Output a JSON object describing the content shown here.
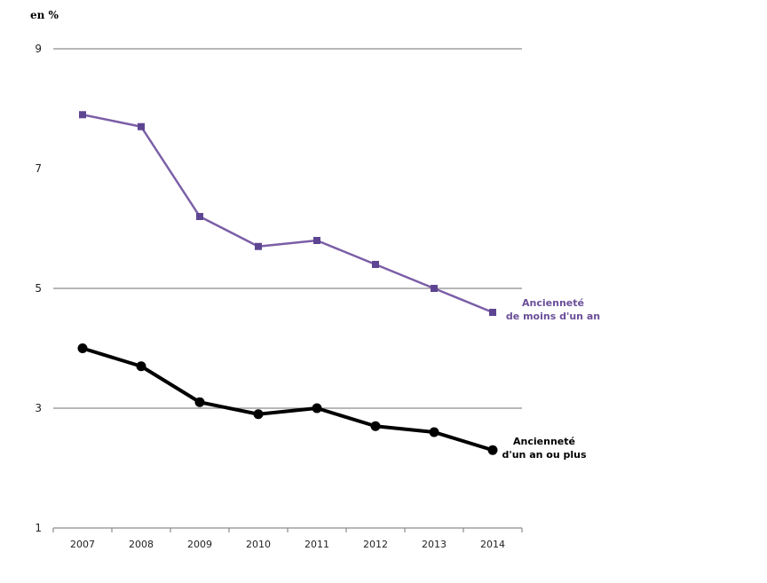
{
  "chart_data": {
    "type": "line",
    "title": "",
    "unit_label": "en %",
    "xlabel": "",
    "ylabel": "en %",
    "categories": [
      "2007",
      "2008",
      "2009",
      "2010",
      "2011",
      "2012",
      "2013",
      "2014"
    ],
    "ylim": [
      1,
      9
    ],
    "yticks": [
      "9",
      "7",
      "5",
      "3",
      "1"
    ],
    "ytick_values": [
      9,
      7,
      5,
      3,
      1
    ],
    "gridlines_at": [
      9,
      5,
      3
    ],
    "legend": "inline-right",
    "series": [
      {
        "name": "Ancienneté de moins d'un an",
        "label_lines": [
          "Ancienneté",
          "de moins d'un an"
        ],
        "color": "#7b5ea7",
        "marker": "square",
        "values": [
          7.9,
          7.7,
          6.2,
          5.7,
          5.8,
          5.4,
          5.0,
          4.6
        ]
      },
      {
        "name": "Ancienneté d'un an ou plus",
        "label_lines": [
          "Ancienneté",
          "d'un an ou plus"
        ],
        "color": "#000000",
        "marker": "circle",
        "values": [
          4.0,
          3.7,
          3.1,
          2.9,
          3.0,
          2.7,
          2.6,
          2.3
        ]
      }
    ]
  }
}
